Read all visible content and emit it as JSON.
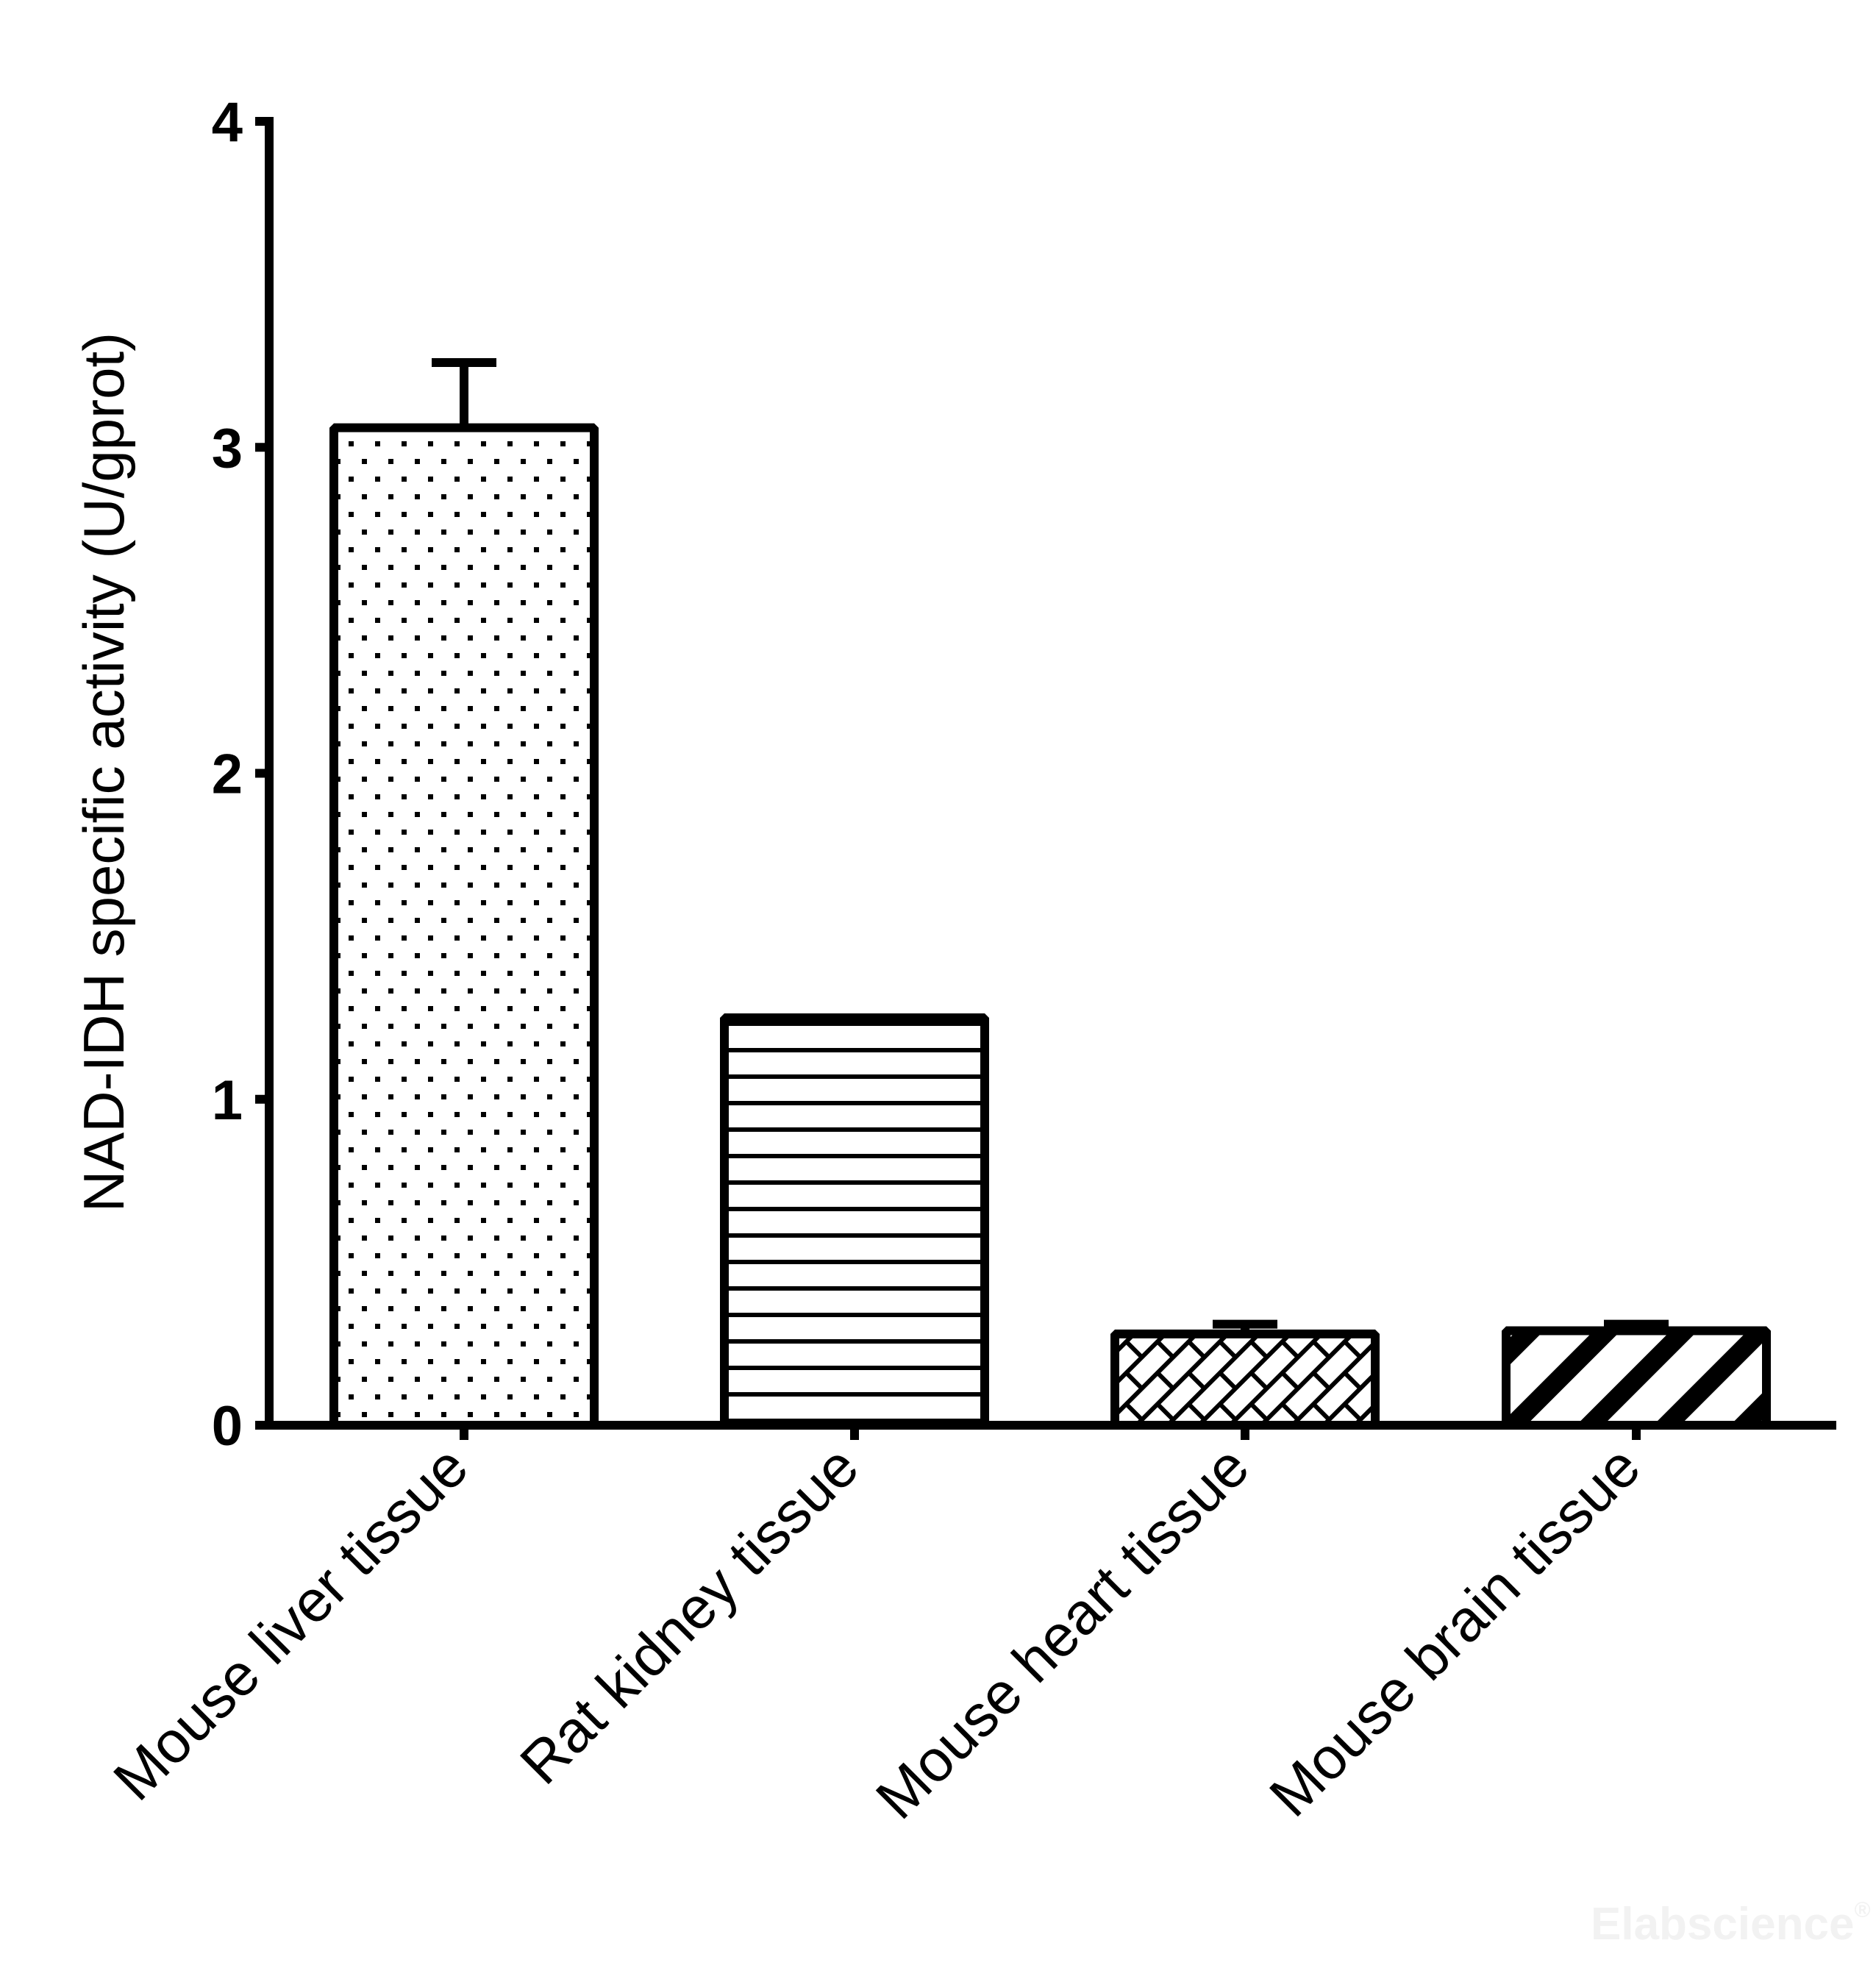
{
  "chart_data": {
    "type": "bar",
    "title": "",
    "xlabel": "",
    "ylabel": "NAD-IDH specific activity (U/gprot)",
    "ylim": [
      0,
      4
    ],
    "yticks": [
      "0",
      "1",
      "2",
      "3",
      "4"
    ],
    "grid": false,
    "legend": null,
    "categories": [
      "Mouse liver tissue",
      "Rat kidney tissue",
      "Mouse heart tissue",
      "Mouse brain tissue"
    ],
    "values": [
      3.06,
      1.25,
      0.28,
      0.29
    ],
    "error_bars": [
      0.2,
      0.0,
      0.03,
      0.02
    ],
    "fill_patterns": [
      "dots",
      "horizontal-lines",
      "brick-crosshatch",
      "wide-diagonal-stripes"
    ],
    "colors": {
      "stroke": "#000000",
      "background": "#ffffff"
    }
  },
  "watermark": {
    "text": "Elabscience",
    "mark": "®"
  }
}
